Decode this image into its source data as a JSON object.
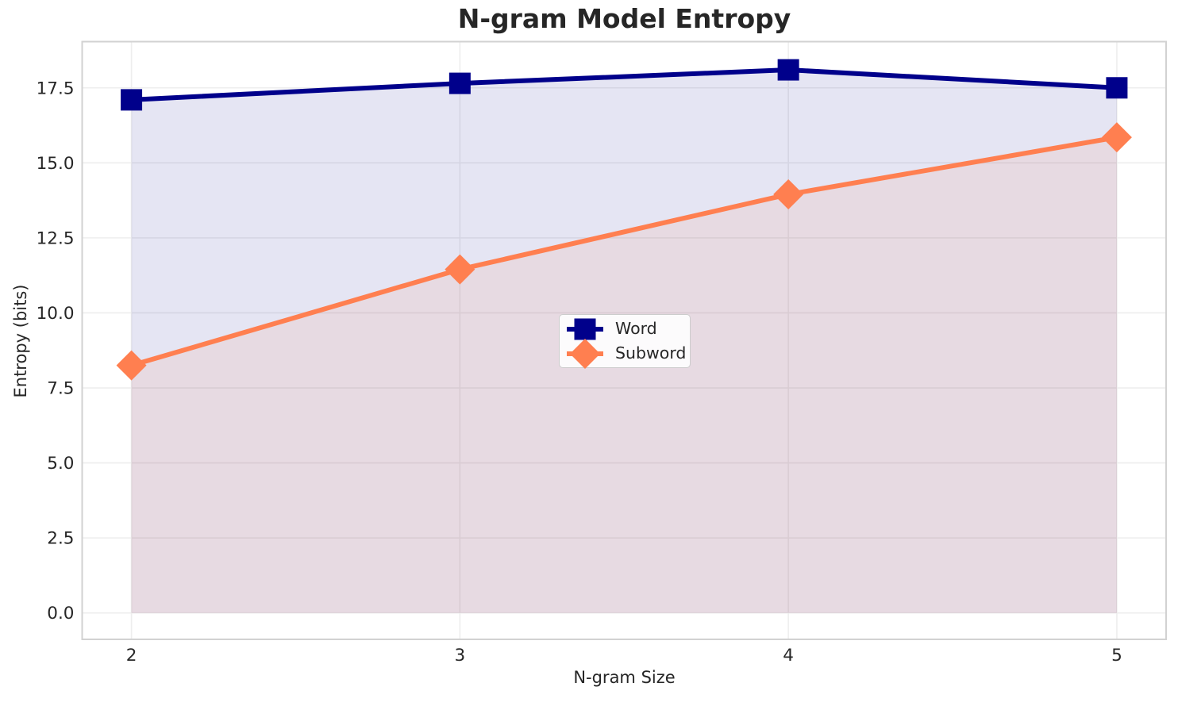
{
  "chart_data": {
    "type": "line",
    "title": "N-gram Model Entropy",
    "xlabel": "N-gram Size",
    "ylabel": "Entropy (bits)",
    "x": [
      2,
      3,
      4,
      5
    ],
    "series": [
      {
        "name": "Word",
        "values": [
          17.1,
          17.65,
          18.1,
          17.5
        ],
        "color": "#00008b",
        "marker": "square",
        "fill_to_zero": true
      },
      {
        "name": "Subword",
        "values": [
          8.25,
          11.45,
          13.95,
          15.85
        ],
        "color": "#ff7f50",
        "marker": "diamond",
        "fill_to_zero": true
      }
    ],
    "fill_opacity": 0.1,
    "xticks": [
      2,
      3,
      4,
      5
    ],
    "xtick_labels": [
      "2",
      "3",
      "4",
      "5"
    ],
    "yticks": [
      0,
      2.5,
      5,
      7.5,
      10,
      12.5,
      15,
      17.5
    ],
    "ytick_labels": [
      "0.0",
      "2.5",
      "5.0",
      "7.5",
      "10.0",
      "12.5",
      "15.0",
      "17.5"
    ],
    "xlim": [
      1.85,
      5.15
    ],
    "ylim": [
      -0.88,
      19.04
    ],
    "grid": true,
    "legend": {
      "visible": true,
      "location": "center"
    }
  },
  "colors": {
    "background": "#ffffff",
    "grid": "#eeeeee",
    "spine": "#d2d2d2",
    "text": "#262626",
    "legend_border": "#cccccc",
    "legend_background": "#fbfbfb"
  }
}
